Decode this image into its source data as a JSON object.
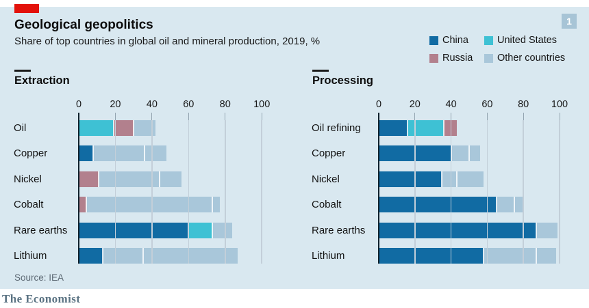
{
  "header": {
    "title": "Geological geopolitics",
    "subtitle": "Share of top countries in global oil and mineral production, 2019, %",
    "figure_number": "1"
  },
  "legend": [
    {
      "key": "china",
      "label": "China"
    },
    {
      "key": "us",
      "label": "United States"
    },
    {
      "key": "russia",
      "label": "Russia"
    },
    {
      "key": "other",
      "label": "Other countries"
    }
  ],
  "colors": {
    "china": "#116BA3",
    "us": "#3EC1D4",
    "russia": "#B2808D",
    "other": "#A9C7DA",
    "panel_bg": "#D9E8F0",
    "red_tab": "#E3120B",
    "badge_bg": "#A7C4D6"
  },
  "chart_data": {
    "type": "bar",
    "orientation": "horizontal-stacked",
    "unit": "%",
    "axis": {
      "min": 0,
      "max": 100,
      "ticks": [
        0,
        20,
        40,
        60,
        80,
        100
      ]
    },
    "panels": [
      {
        "title": "Extraction",
        "categories": [
          "Oil",
          "Copper",
          "Nickel",
          "Cobalt",
          "Rare earths",
          "Lithium"
        ],
        "rows": [
          {
            "label": "Oil",
            "segments": [
              {
                "key": "us",
                "value": 19
              },
              {
                "key": "russia",
                "value": 11
              },
              {
                "key": "other",
                "value": 12
              }
            ]
          },
          {
            "label": "Copper",
            "segments": [
              {
                "key": "china",
                "value": 8
              },
              {
                "key": "other",
                "value": 28
              },
              {
                "key": "other",
                "value": 12
              }
            ]
          },
          {
            "label": "Nickel",
            "segments": [
              {
                "key": "russia",
                "value": 11
              },
              {
                "key": "other",
                "value": 33
              },
              {
                "key": "other",
                "value": 12
              }
            ]
          },
          {
            "label": "Cobalt",
            "segments": [
              {
                "key": "russia",
                "value": 4
              },
              {
                "key": "other",
                "value": 69
              },
              {
                "key": "other",
                "value": 4
              }
            ]
          },
          {
            "label": "Rare earths",
            "segments": [
              {
                "key": "china",
                "value": 60
              },
              {
                "key": "us",
                "value": 13
              },
              {
                "key": "other",
                "value": 11
              }
            ]
          },
          {
            "label": "Lithium",
            "segments": [
              {
                "key": "china",
                "value": 13
              },
              {
                "key": "other",
                "value": 22
              },
              {
                "key": "other",
                "value": 52
              }
            ]
          }
        ]
      },
      {
        "title": "Processing",
        "categories": [
          "Oil refining",
          "Copper",
          "Nickel",
          "Cobalt",
          "Rare earths",
          "Lithium"
        ],
        "rows": [
          {
            "label": "Oil refining",
            "segments": [
              {
                "key": "china",
                "value": 16
              },
              {
                "key": "us",
                "value": 20
              },
              {
                "key": "russia",
                "value": 7
              }
            ]
          },
          {
            "label": "Copper",
            "segments": [
              {
                "key": "china",
                "value": 40
              },
              {
                "key": "other",
                "value": 10
              },
              {
                "key": "other",
                "value": 6
              }
            ]
          },
          {
            "label": "Nickel",
            "segments": [
              {
                "key": "china",
                "value": 35
              },
              {
                "key": "other",
                "value": 8
              },
              {
                "key": "other",
                "value": 15
              }
            ]
          },
          {
            "label": "Cobalt",
            "segments": [
              {
                "key": "china",
                "value": 65
              },
              {
                "key": "other",
                "value": 10
              },
              {
                "key": "other",
                "value": 5
              }
            ]
          },
          {
            "label": "Rare earths",
            "segments": [
              {
                "key": "china",
                "value": 87
              },
              {
                "key": "other",
                "value": 12
              }
            ]
          },
          {
            "label": "Lithium",
            "segments": [
              {
                "key": "china",
                "value": 58
              },
              {
                "key": "other",
                "value": 29
              },
              {
                "key": "other",
                "value": 11
              }
            ]
          }
        ]
      }
    ]
  },
  "footer": {
    "source": "Source: IEA",
    "brand": "The Economist"
  }
}
